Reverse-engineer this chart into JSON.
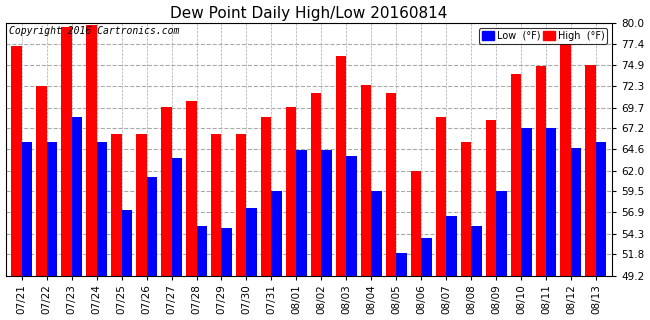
{
  "title": "Dew Point Daily High/Low 20160814",
  "copyright": "Copyright 2016 Cartronics.com",
  "legend_low": "Low  (°F)",
  "legend_high": "High  (°F)",
  "dates": [
    "07/21",
    "07/22",
    "07/23",
    "07/24",
    "07/25",
    "07/26",
    "07/27",
    "07/28",
    "07/29",
    "07/30",
    "07/31",
    "08/01",
    "08/02",
    "08/03",
    "08/04",
    "08/05",
    "08/06",
    "08/07",
    "08/08",
    "08/09",
    "08/10",
    "08/11",
    "08/12",
    "08/13"
  ],
  "low": [
    65.5,
    65.5,
    68.5,
    65.5,
    57.2,
    61.2,
    63.5,
    55.2,
    55.0,
    57.5,
    59.5,
    64.5,
    64.5,
    63.8,
    59.5,
    52.0,
    53.8,
    56.5,
    55.2,
    59.5,
    67.2,
    67.2,
    64.8,
    65.5
  ],
  "high": [
    77.2,
    72.3,
    79.5,
    79.8,
    66.5,
    66.5,
    69.8,
    70.5,
    66.5,
    66.5,
    68.5,
    69.8,
    71.5,
    76.0,
    72.5,
    71.5,
    62.0,
    68.5,
    65.5,
    68.2,
    73.8,
    74.8,
    77.4,
    74.9
  ],
  "ylim": [
    49.2,
    80.0
  ],
  "yticks": [
    49.2,
    51.8,
    54.3,
    56.9,
    59.5,
    62.0,
    64.6,
    67.2,
    69.7,
    72.3,
    74.9,
    77.4,
    80.0
  ],
  "low_color": "#0000ff",
  "high_color": "#ff0000",
  "bg_color": "#ffffff",
  "grid_color": "#aaaaaa",
  "bar_width": 0.42,
  "title_fontsize": 11,
  "tick_fontsize": 7.5,
  "copyright_fontsize": 7
}
